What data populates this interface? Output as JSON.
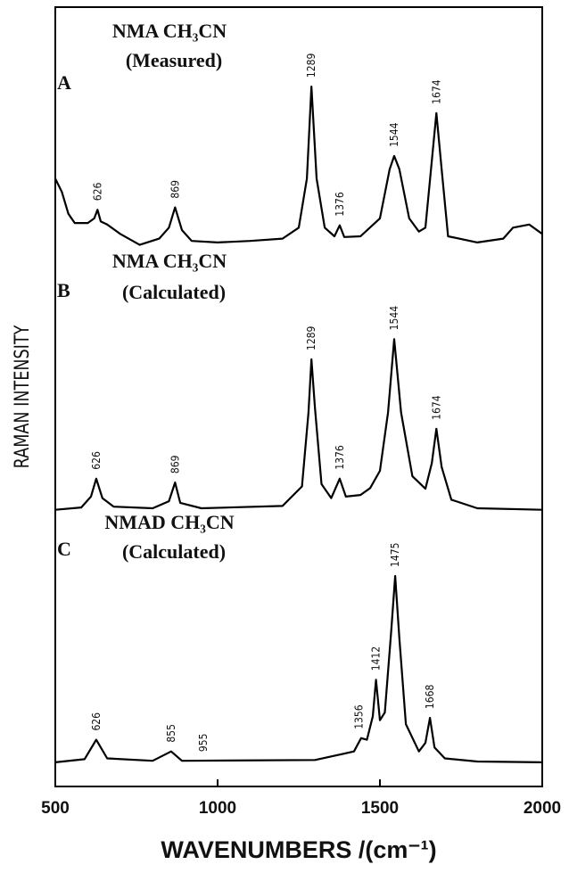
{
  "chart_data": {
    "type": "line",
    "xlabel": "WAVENUMBERS /(cm⁻¹)",
    "ylabel": "RAMAN INTENSITY",
    "xlim": [
      500,
      2000
    ],
    "xticks": [
      500,
      1000,
      1500,
      2000
    ],
    "ylim": [
      0,
      100
    ],
    "color": "#000000",
    "series": [
      {
        "name": "A",
        "title": "NMA  CH₃CN",
        "subtitle": "(Measured)",
        "x": [
          500,
          520,
          540,
          560,
          600,
          620,
          630,
          640,
          660,
          700,
          760,
          820,
          850,
          869,
          890,
          920,
          1000,
          1100,
          1200,
          1250,
          1275,
          1289,
          1305,
          1330,
          1360,
          1376,
          1390,
          1440,
          1500,
          1530,
          1544,
          1560,
          1590,
          1620,
          1640,
          1660,
          1674,
          1690,
          1710,
          1800,
          1880,
          1910,
          1960,
          2000
        ],
        "values": [
          78.0,
          76.3,
          73.5,
          72.3,
          72.3,
          72.9,
          74.0,
          72.5,
          72.1,
          70.9,
          69.5,
          70.3,
          71.7,
          74.3,
          71.4,
          70.0,
          69.8,
          70.0,
          70.3,
          71.7,
          78.0,
          89.8,
          78.0,
          71.7,
          70.6,
          72.0,
          70.5,
          70.6,
          72.9,
          79.2,
          80.9,
          79.2,
          72.9,
          71.2,
          71.7,
          80.3,
          86.4,
          79.2,
          70.6,
          69.8,
          70.3,
          71.7,
          72.1,
          70.9
        ],
        "annotations": [
          {
            "label": "626",
            "x": 630
          },
          {
            "label": "869",
            "x": 869
          },
          {
            "label": "1289",
            "x": 1289
          },
          {
            "label": "1376",
            "x": 1376
          },
          {
            "label": "1544",
            "x": 1544
          },
          {
            "label": "1674",
            "x": 1674
          }
        ]
      },
      {
        "name": "B",
        "title": "NMA  CH₃CN",
        "subtitle": "(Calculated)",
        "x": [
          500,
          580,
          610,
          626,
          645,
          680,
          800,
          850,
          869,
          885,
          950,
          1200,
          1260,
          1280,
          1289,
          1300,
          1320,
          1350,
          1376,
          1395,
          1440,
          1470,
          1500,
          1525,
          1544,
          1565,
          1600,
          1640,
          1660,
          1674,
          1690,
          1720,
          1800,
          2000
        ],
        "values": [
          35.5,
          35.8,
          37.2,
          39.5,
          37.0,
          35.9,
          35.7,
          36.6,
          39.0,
          36.4,
          35.7,
          36.0,
          38.5,
          48.0,
          54.8,
          48.5,
          38.8,
          37.0,
          39.5,
          37.2,
          37.4,
          38.3,
          40.5,
          48.0,
          57.4,
          48.0,
          39.8,
          38.2,
          41.5,
          45.9,
          41.0,
          36.8,
          35.7,
          35.5
        ],
        "annotations": [
          {
            "label": "626",
            "x": 626
          },
          {
            "label": "869",
            "x": 869
          },
          {
            "label": "1289",
            "x": 1289
          },
          {
            "label": "1376",
            "x": 1376
          },
          {
            "label": "1544",
            "x": 1544
          },
          {
            "label": "1674",
            "x": 1674
          }
        ]
      },
      {
        "name": "C",
        "title": "NMAD  CH₃CN",
        "subtitle": "(Calculated)",
        "x": [
          500,
          590,
          626,
          660,
          800,
          857,
          890,
          1300,
          1420,
          1442,
          1460,
          1478,
          1488,
          1500,
          1515,
          1535,
          1547,
          1560,
          1580,
          1620,
          1640,
          1654,
          1668,
          1700,
          1800,
          2000
        ],
        "values": [
          3.1,
          3.5,
          6.0,
          3.6,
          3.3,
          4.5,
          3.3,
          3.4,
          4.5,
          6.2,
          6.0,
          9.0,
          13.7,
          8.5,
          9.5,
          20.0,
          27.0,
          19.0,
          8.0,
          4.5,
          5.6,
          8.8,
          5.0,
          3.6,
          3.2,
          3.1
        ],
        "annotations": [
          {
            "label": "626",
            "x": 626
          },
          {
            "label": "855",
            "x": 857
          },
          {
            "label": "955",
            "x": 956
          },
          {
            "label": "1356",
            "x": 1436
          },
          {
            "label": "1412",
            "x": 1488
          },
          {
            "label": "1475",
            "x": 1547
          },
          {
            "label": "1668",
            "x": 1654
          }
        ]
      }
    ]
  }
}
